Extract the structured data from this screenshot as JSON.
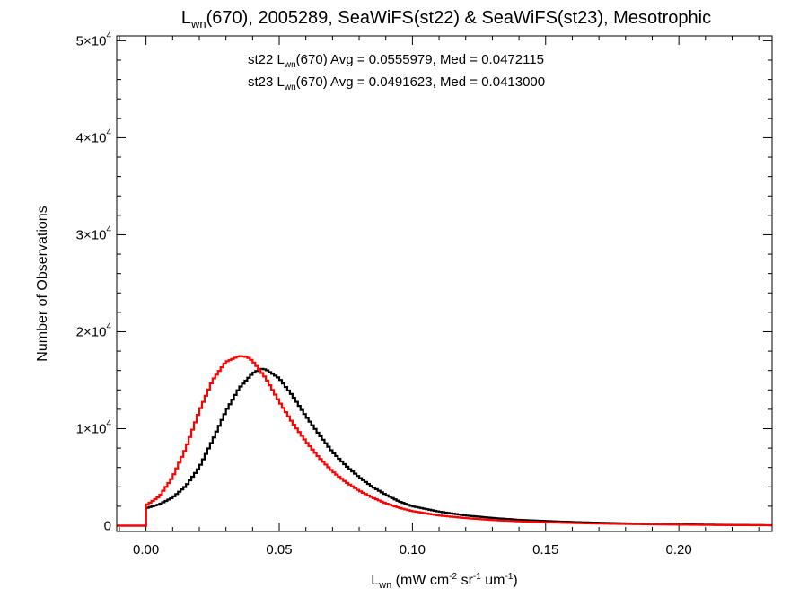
{
  "chart_data": {
    "type": "line",
    "title": {
      "pre": "L",
      "sub": "wn",
      "post": "(670), 2005289, SeaWiFS(st22) & SeaWiFS(st23), Mesotrophic"
    },
    "xlabel": {
      "pre": "L",
      "sub": "wn",
      "mid1": " (mW cm",
      "sup1": "-2",
      "mid2": " sr",
      "sup2": "-1",
      "mid3": " um",
      "sup3": "-1",
      "post": ")"
    },
    "ylabel": "Number of Observations",
    "xlim": [
      -0.011,
      0.235
    ],
    "ylim": [
      -600,
      50500
    ],
    "x_ticks": [
      {
        "value": 0.0,
        "label": "0.00"
      },
      {
        "value": 0.05,
        "label": "0.05"
      },
      {
        "value": 0.1,
        "label": "0.10"
      },
      {
        "value": 0.15,
        "label": "0.15"
      },
      {
        "value": 0.2,
        "label": "0.20"
      }
    ],
    "y_ticks": [
      {
        "value": 0,
        "label": "0",
        "exp": ""
      },
      {
        "value": 10000,
        "label": "1×10",
        "exp": "4"
      },
      {
        "value": 20000,
        "label": "2×10",
        "exp": "4"
      },
      {
        "value": 30000,
        "label": "3×10",
        "exp": "4"
      },
      {
        "value": 40000,
        "label": "4×10",
        "exp": "4"
      },
      {
        "value": 50000,
        "label": "5×10",
        "exp": "4"
      }
    ],
    "annotations": [
      {
        "pre": "st22 L",
        "sub": "wn",
        "post": "(670) Avg = 0.0555979, Med = 0.0472115",
        "color": "#000000"
      },
      {
        "pre": "st23 L",
        "sub": "wn",
        "post": "(670) Avg = 0.0491623, Med = 0.0413000",
        "color": "#ff0000"
      }
    ],
    "series": [
      {
        "color": "#000000",
        "style": "step",
        "x": [
          -0.011,
          0.0,
          0.0,
          0.005,
          0.01,
          0.015,
          0.02,
          0.025,
          0.03,
          0.035,
          0.04,
          0.043,
          0.045,
          0.05,
          0.055,
          0.06,
          0.065,
          0.07,
          0.075,
          0.08,
          0.085,
          0.09,
          0.095,
          0.1,
          0.11,
          0.12,
          0.13,
          0.14,
          0.15,
          0.16,
          0.17,
          0.18,
          0.19,
          0.2,
          0.21,
          0.22,
          0.235
        ],
        "y": [
          0,
          0,
          1800,
          2200,
          2900,
          4100,
          6000,
          8800,
          11800,
          14200,
          15700,
          16200,
          16100,
          15200,
          13400,
          11300,
          9400,
          7600,
          6200,
          5000,
          4000,
          3200,
          2500,
          2000,
          1450,
          1050,
          800,
          600,
          480,
          380,
          300,
          240,
          190,
          150,
          110,
          80,
          50
        ]
      },
      {
        "color": "#ff0000",
        "style": "step",
        "x": [
          -0.011,
          0.0,
          0.0,
          0.005,
          0.01,
          0.015,
          0.02,
          0.025,
          0.03,
          0.035,
          0.038,
          0.04,
          0.045,
          0.05,
          0.055,
          0.06,
          0.065,
          0.07,
          0.075,
          0.08,
          0.085,
          0.09,
          0.095,
          0.1,
          0.11,
          0.12,
          0.13,
          0.14,
          0.15,
          0.16,
          0.17,
          0.18,
          0.19,
          0.2,
          0.21,
          0.22,
          0.235
        ],
        "y": [
          0,
          0,
          2100,
          3000,
          5000,
          8000,
          11800,
          15000,
          16900,
          17500,
          17400,
          17000,
          15200,
          12800,
          10600,
          8700,
          7000,
          5600,
          4500,
          3600,
          2900,
          2300,
          1850,
          1500,
          1050,
          780,
          580,
          450,
          350,
          280,
          220,
          180,
          140,
          110,
          80,
          60,
          40
        ]
      }
    ]
  }
}
